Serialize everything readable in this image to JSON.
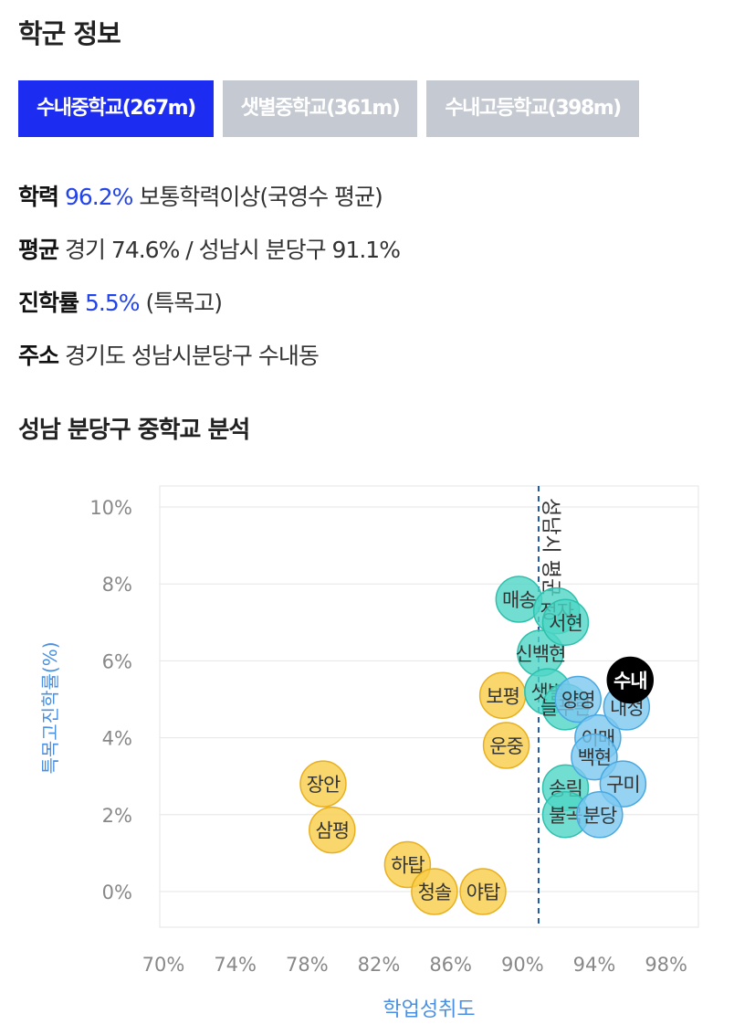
{
  "title": "학군 정보",
  "tabs": [
    {
      "label": "수내중학교(267m)",
      "active": true
    },
    {
      "label": "샛별중학교(361m)",
      "active": false
    },
    {
      "label": "수내고등학교(398m)",
      "active": false
    }
  ],
  "stats": {
    "academic": {
      "label": "학력",
      "value": "96.2%",
      "desc": "보통학력이상(국영수 평균)"
    },
    "average": {
      "label": "평균",
      "desc": "경기 74.6% / 성남시 분당구 91.1%"
    },
    "advance": {
      "label": "진학률",
      "value": "5.5%",
      "desc": "(특목고)"
    },
    "address": {
      "label": "주소",
      "desc": "경기도 성남시분당구 수내동"
    }
  },
  "chart_title": "성남 분당구 중학교 분석",
  "colors": {
    "accent": "#1c2cf0",
    "blue_text": "#2244e8",
    "axis_label": "#4a90e2",
    "yellow": "#f7cd47",
    "teal": "#4fd6c6",
    "skyblue": "#7cc8f0",
    "highlight": "#000000"
  },
  "chart_data": {
    "type": "scatter",
    "xlabel": "학업성취도",
    "ylabel": "특목고진학률(%)",
    "xlim": [
      70,
      100
    ],
    "ylim": [
      -1,
      10.5
    ],
    "xticks": [
      "70%",
      "74%",
      "78%",
      "82%",
      "86%",
      "90%",
      "94%",
      "98%"
    ],
    "xtick_values": [
      70,
      74,
      78,
      82,
      86,
      90,
      94,
      98
    ],
    "yticks": [
      "10%",
      "8%",
      "6%",
      "4%",
      "2%",
      "0%"
    ],
    "ytick_values": [
      10,
      8,
      6,
      4,
      2,
      0
    ],
    "reference_line": {
      "x": 91.1,
      "label": "성남시 평균"
    },
    "grid": true,
    "points": [
      {
        "label": "장안",
        "x": 79.1,
        "y": 2.8,
        "group": "yellow"
      },
      {
        "label": "삼평",
        "x": 79.6,
        "y": 1.6,
        "group": "yellow"
      },
      {
        "label": "하탑",
        "x": 83.8,
        "y": 0.7,
        "group": "yellow"
      },
      {
        "label": "청솔",
        "x": 85.3,
        "y": 0.0,
        "group": "yellow"
      },
      {
        "label": "야탑",
        "x": 88.0,
        "y": 0.0,
        "group": "yellow"
      },
      {
        "label": "보평",
        "x": 89.1,
        "y": 5.1,
        "group": "yellow"
      },
      {
        "label": "운중",
        "x": 89.3,
        "y": 3.8,
        "group": "yellow"
      },
      {
        "label": "매송",
        "x": 90.0,
        "y": 7.6,
        "group": "teal"
      },
      {
        "label": "신백현",
        "x": 91.2,
        "y": 6.2,
        "group": "teal"
      },
      {
        "label": "샛별",
        "x": 91.6,
        "y": 5.2,
        "group": "teal"
      },
      {
        "label": "정자",
        "x": 92.1,
        "y": 7.3,
        "group": "teal"
      },
      {
        "label": "서현",
        "x": 92.6,
        "y": 7.0,
        "group": "teal"
      },
      {
        "label": "늘푸른",
        "x": 92.6,
        "y": 4.8,
        "group": "teal"
      },
      {
        "label": "송림",
        "x": 92.6,
        "y": 2.7,
        "group": "teal"
      },
      {
        "label": "불곡",
        "x": 92.6,
        "y": 2.0,
        "group": "teal"
      },
      {
        "label": "양영",
        "x": 93.3,
        "y": 5.0,
        "group": "skyblue"
      },
      {
        "label": "이매",
        "x": 94.4,
        "y": 4.0,
        "group": "skyblue"
      },
      {
        "label": "백현",
        "x": 94.2,
        "y": 3.5,
        "group": "skyblue"
      },
      {
        "label": "구미",
        "x": 95.8,
        "y": 2.8,
        "group": "skyblue"
      },
      {
        "label": "내정",
        "x": 96.0,
        "y": 4.8,
        "group": "skyblue"
      },
      {
        "label": "분당",
        "x": 94.5,
        "y": 2.0,
        "group": "skyblue"
      },
      {
        "label": "수내",
        "x": 96.2,
        "y": 5.5,
        "group": "highlight"
      }
    ]
  }
}
